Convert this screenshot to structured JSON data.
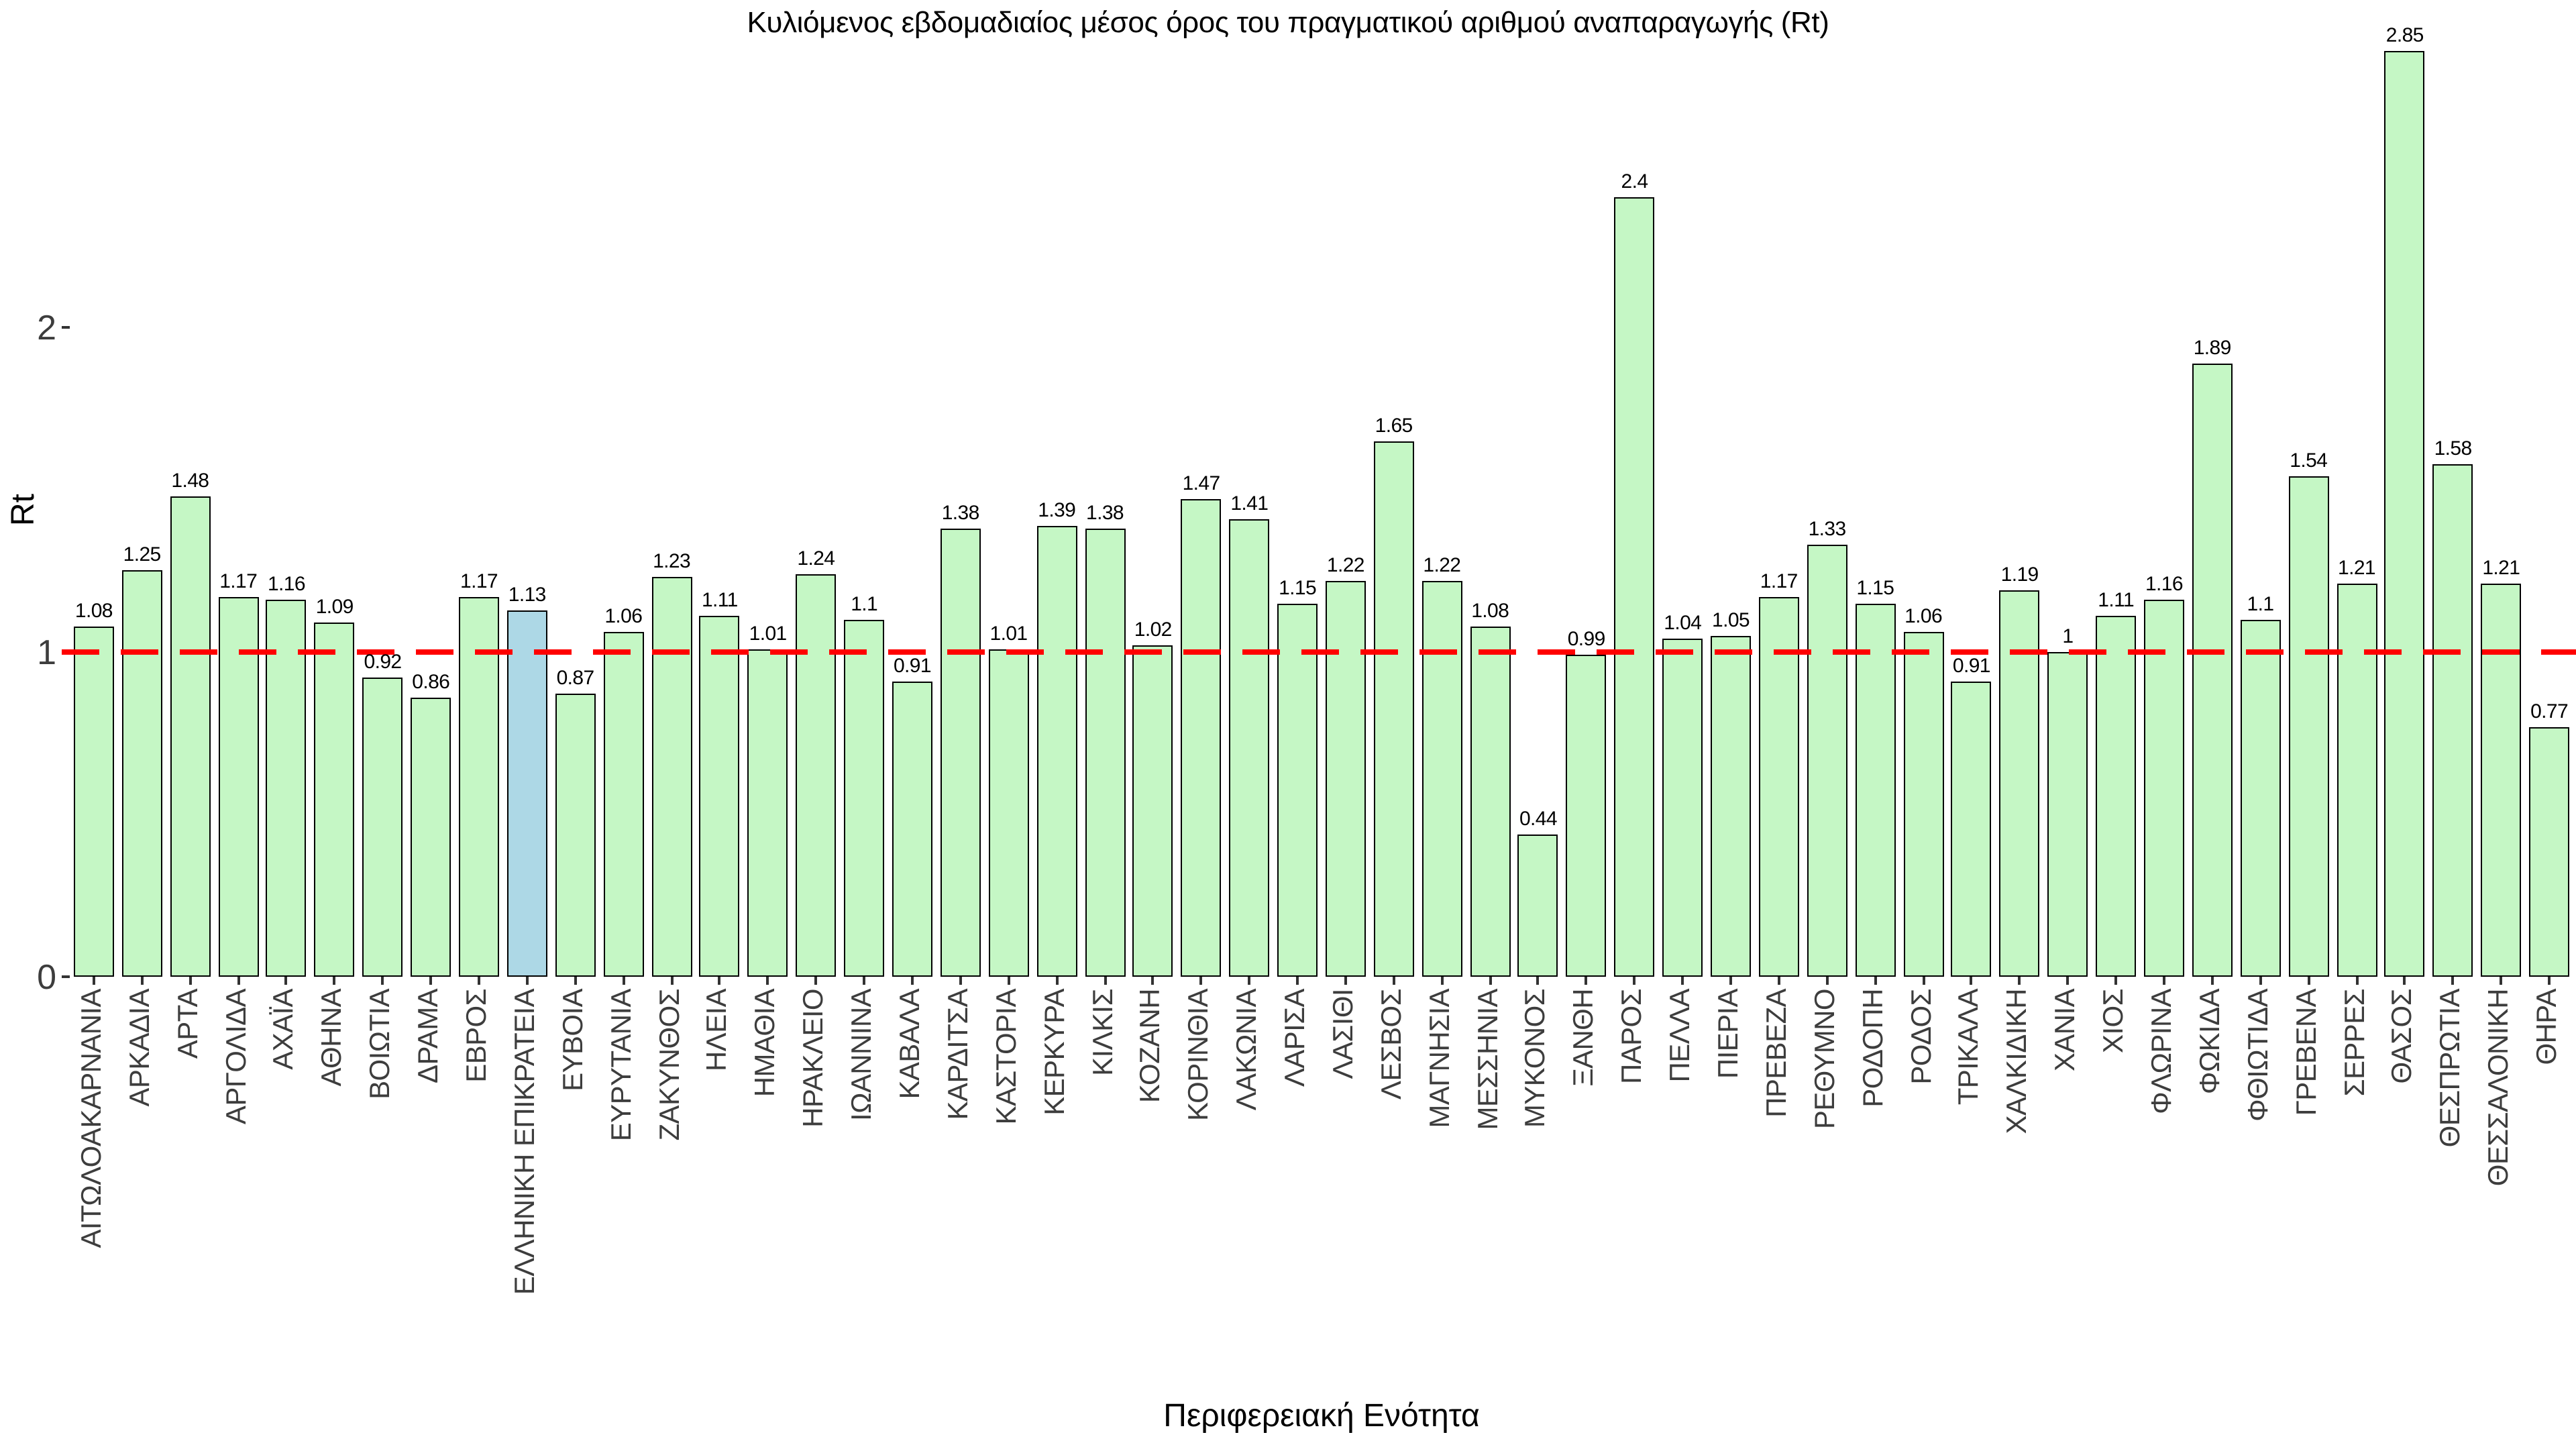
{
  "chart_data": {
    "type": "bar",
    "title": "Κυλιόμενος εβδομαδιαίος μέσος όρος του πραγματικού αριθμού αναπαραγωγής (Rt)",
    "xlabel": "Περιφερειακή Ενότητα",
    "ylabel": "Rt",
    "categories": [
      "ΑΙΤΩΛΟΑΚΑΡΝΑΝΙΑ",
      "ΑΡΚΑΔΙΑ",
      "ΑΡΤΑ",
      "ΑΡΓΟΛΙΔΑ",
      "ΑΧΑΪΑ",
      "ΑΘΗΝΑ",
      "ΒΟΙΩΤΙΑ",
      "ΔΡΑΜΑ",
      "ΕΒΡΟΣ",
      "ΕΛΛΗΝΙΚΗ ΕΠΙΚΡΑΤΕΙΑ",
      "ΕΥΒΟΙΑ",
      "ΕΥΡΥΤΑΝΙΑ",
      "ΖΑΚΥΝΘΟΣ",
      "ΗΛΕΙΑ",
      "ΗΜΑΘΙΑ",
      "ΗΡΑΚΛΕΙΟ",
      "ΙΩΑΝΝΙΝΑ",
      "ΚΑΒΑΛΑ",
      "ΚΑΡΔΙΤΣΑ",
      "ΚΑΣΤΟΡΙΑ",
      "ΚΕΡΚΥΡΑ",
      "ΚΙΛΚΙΣ",
      "ΚΟΖΑΝΗ",
      "ΚΟΡΙΝΘΙΑ",
      "ΛΑΚΩΝΙΑ",
      "ΛΑΡΙΣΑ",
      "ΛΑΣΙΘΙ",
      "ΛΕΣΒΟΣ",
      "ΜΑΓΝΗΣΙΑ",
      "ΜΕΣΣΗΝΙΑ",
      "ΜΥΚΟΝΟΣ",
      "ΞΑΝΘΗ",
      "ΠΑΡΟΣ",
      "ΠΕΛΛΑ",
      "ΠΙΕΡΙΑ",
      "ΠΡΕΒΕΖΑ",
      "ΡΕΘΥΜΝΟ",
      "ΡΟΔΟΠΗ",
      "ΡΟΔΟΣ",
      "ΤΡΙΚΑΛΑ",
      "ΧΑΛΚΙΔΙΚΗ",
      "ΧΑΝΙΑ",
      "ΧΙΟΣ",
      "ΦΛΩΡΙΝΑ",
      "ΦΩΚΙΔΑ",
      "ΦΘΙΩΤΙΔΑ",
      "ΓΡΕΒΕΝΑ",
      "ΣΕΡΡΕΣ",
      "ΘΑΣΟΣ",
      "ΘΕΣΠΡΩΤΙΑ",
      "ΘΕΣΣΑΛΟΝΙΚΗ",
      "ΘΗΡΑ"
    ],
    "values": [
      1.08,
      1.25,
      1.48,
      1.17,
      1.16,
      1.09,
      0.92,
      0.86,
      1.17,
      1.13,
      0.87,
      1.06,
      1.23,
      1.11,
      1.01,
      1.24,
      1.1,
      0.91,
      1.38,
      1.01,
      1.39,
      1.38,
      1.02,
      1.47,
      1.41,
      1.15,
      1.22,
      1.65,
      1.22,
      1.08,
      0.44,
      0.99,
      2.4,
      1.04,
      1.05,
      1.17,
      1.33,
      1.15,
      1.06,
      0.91,
      1.19,
      1,
      1.11,
      1.16,
      1.89,
      1.1,
      1.54,
      1.21,
      2.85,
      1.58,
      1.21,
      0.77
    ],
    "value_labels": [
      "1.08",
      "1.25",
      "1.48",
      "1.17",
      "1.16",
      "1.09",
      "0.92",
      "0.86",
      "1.17",
      "1.13",
      "0.87",
      "1.06",
      "1.23",
      "1.11",
      "1.01",
      "1.24",
      "1.1",
      "0.91",
      "1.38",
      "1.01",
      "1.39",
      "1.38",
      "1.02",
      "1.47",
      "1.41",
      "1.15",
      "1.22",
      "1.65",
      "1.22",
      "1.08",
      "0.44",
      "0.99",
      "2.4",
      "1.04",
      "1.05",
      "1.17",
      "1.33",
      "1.15",
      "1.06",
      "0.91",
      "1.19",
      "1",
      "1.11",
      "1.16",
      "1.89",
      "1.1",
      "1.54",
      "1.21",
      "2.85",
      "1.58",
      "1.21",
      "0.77"
    ],
    "highlight_category": "ΕΛΛΗΝΙΚΗ ΕΠΙΚΡΑΤΕΙΑ",
    "highlight_index": 9,
    "bar_color": "#c5f7c5",
    "highlight_color": "#add8e6",
    "bar_edge_color": "#000000",
    "reference_line": {
      "y": 1,
      "color": "#ff0000",
      "style": "dashed"
    },
    "yticks": [
      "0",
      "1",
      "2"
    ],
    "ytick_values": [
      0,
      1,
      2
    ],
    "ylim": [
      0,
      3.0
    ],
    "grid": false,
    "legend": null
  }
}
